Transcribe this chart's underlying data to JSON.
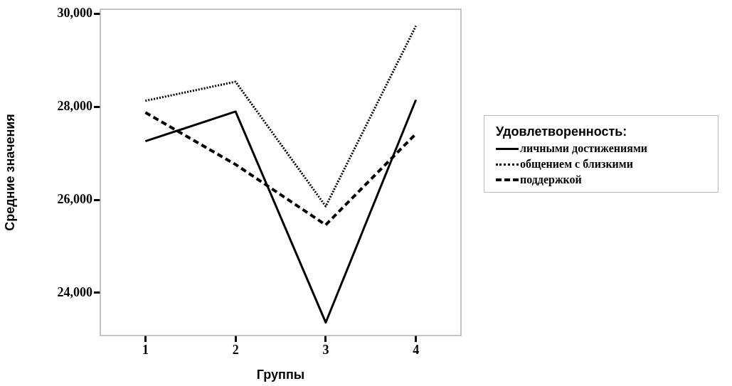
{
  "chart_data": {
    "type": "line",
    "xlabel": "Группы",
    "ylabel": "Средние значения",
    "legend_title": "Удовлетворенность:",
    "categories": [
      "1",
      "2",
      "3",
      "4"
    ],
    "series": [
      {
        "name": "личными достижениями",
        "color": "#000000",
        "line_style": "solid",
        "values": [
          27260,
          27900,
          23360,
          28150
        ]
      },
      {
        "name": "общением с близкими",
        "color": "#000000",
        "line_style": "dotted",
        "values": [
          28130,
          28540,
          25860,
          29740
        ]
      },
      {
        "name": "поддержкой",
        "color": "#000000",
        "line_style": "dashed",
        "values": [
          27880,
          26760,
          25460,
          27420
        ]
      }
    ],
    "ylim": [
      23080,
      30100
    ],
    "yticks": [
      {
        "value": 24000,
        "label": "24,000"
      },
      {
        "value": 26000,
        "label": "26,000"
      },
      {
        "value": 28000,
        "label": "28,000"
      },
      {
        "value": 30000,
        "label": "30,000"
      }
    ],
    "grid": false,
    "legend": "right",
    "marker": "none"
  }
}
